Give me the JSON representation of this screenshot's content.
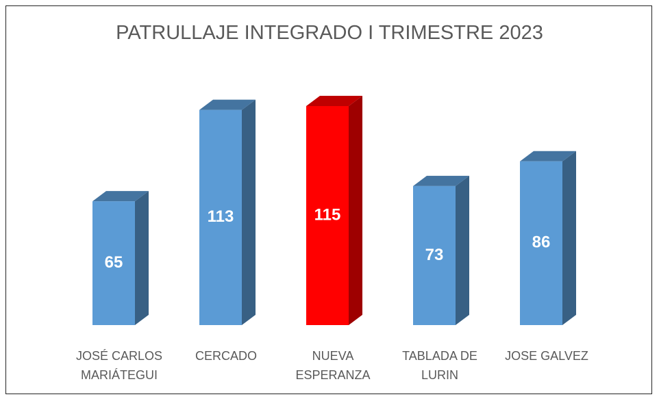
{
  "chart_data": {
    "type": "bar3d",
    "title": "PATRULLAJE INTEGRADO I TRIMESTRE  2023",
    "categories": [
      "JOSÉ CARLOS MARIÁTEGUI",
      "CERCADO",
      "NUEVA ESPERANZA",
      "TABLADA DE LURIN",
      "JOSE GALVEZ"
    ],
    "values": [
      65,
      113,
      115,
      73,
      86
    ],
    "colors": [
      "#5b9bd5",
      "#5b9bd5",
      "#ff0000",
      "#5b9bd5",
      "#5b9bd5"
    ]
  }
}
